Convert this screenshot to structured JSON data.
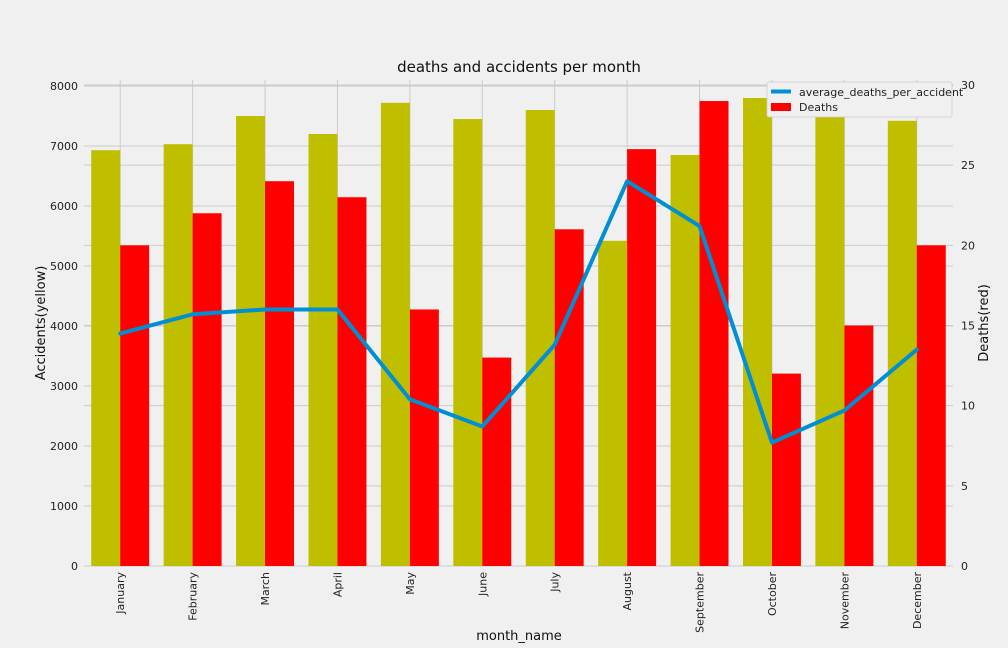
{
  "chart_data": {
    "type": "bar+line",
    "title": "deaths and accidents per month",
    "xlabel": "month_name",
    "ylabel_left": "Accidents(yellow)",
    "ylabel_right": "Deaths(red)",
    "categories": [
      "January",
      "February",
      "March",
      "April",
      "May",
      "June",
      "July",
      "August",
      "September",
      "October",
      "November",
      "December"
    ],
    "series": [
      {
        "name": "Accidents",
        "axis": "left",
        "kind": "bar",
        "color": "#bfbf00",
        "values": [
          6930,
          7030,
          7500,
          7200,
          7720,
          7450,
          7600,
          5420,
          6850,
          7800,
          7720,
          7420
        ]
      },
      {
        "name": "Deaths",
        "axis": "right",
        "kind": "bar",
        "color": "#ff0000",
        "values": [
          20,
          22,
          24,
          23,
          16,
          13,
          21,
          26,
          29,
          12,
          15,
          20
        ]
      },
      {
        "name": "average_deaths_per_accident",
        "axis": "right",
        "kind": "line",
        "color": "#008fd5",
        "values": [
          14.5,
          15.7,
          16.0,
          16.0,
          10.4,
          8.7,
          13.8,
          24.0,
          21.2,
          7.7,
          9.7,
          13.5
        ]
      }
    ],
    "ylim_left": [
      0,
      8100
    ],
    "yticks_left": [
      0,
      1000,
      2000,
      3000,
      4000,
      5000,
      6000,
      7000,
      8000
    ],
    "ylim_right": [
      0,
      30
    ],
    "yticks_right": [
      0,
      5,
      10,
      15,
      20,
      25,
      30
    ],
    "legend": {
      "position": "top-right",
      "entries": [
        "average_deaths_per_accident",
        "Deaths"
      ]
    },
    "grid": true
  }
}
